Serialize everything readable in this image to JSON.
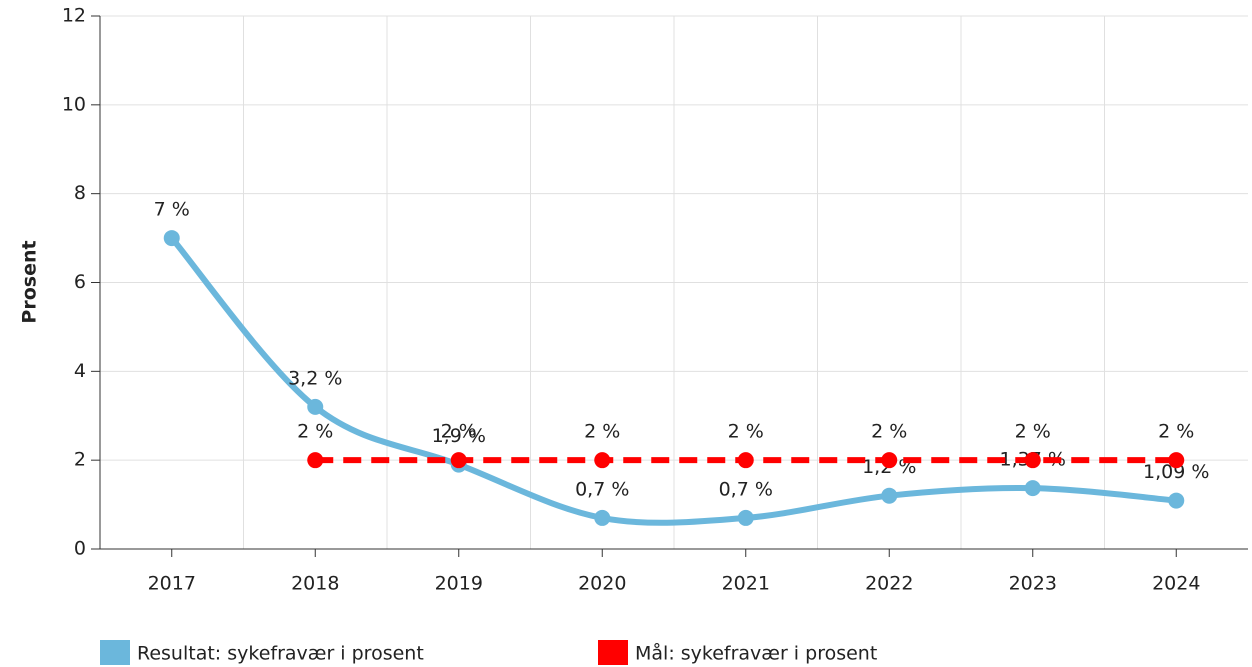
{
  "chart_data": {
    "type": "line",
    "y_label": "Prosent",
    "categories": [
      "2017",
      "2018",
      "2019",
      "2020",
      "2021",
      "2022",
      "2023",
      "2024"
    ],
    "series": [
      {
        "name": "Resultat: sykefravær i prosent",
        "color": "#6bb7dc",
        "style": "smooth",
        "values": [
          7,
          3.2,
          1.9,
          0.7,
          0.7,
          1.2,
          1.37,
          1.09
        ],
        "value_labels": [
          "7 %",
          "3,2 %",
          "1,9 %",
          "0,7 %",
          "0,7 %",
          "1,2 %",
          "1,37 %",
          "1,09 %"
        ]
      },
      {
        "name": "Mål: sykefravær i prosent",
        "color": "#ff0000",
        "style": "dashed",
        "values": [
          null,
          2,
          2,
          2,
          2,
          2,
          2,
          2
        ],
        "value_labels": [
          null,
          "2 %",
          "2 %",
          "2 %",
          "2 %",
          "2 %",
          "2 %",
          "2 %"
        ]
      }
    ],
    "ylim": [
      0,
      12
    ],
    "yticks": [
      0,
      2,
      4,
      6,
      8,
      10,
      12
    ],
    "grid": true
  }
}
